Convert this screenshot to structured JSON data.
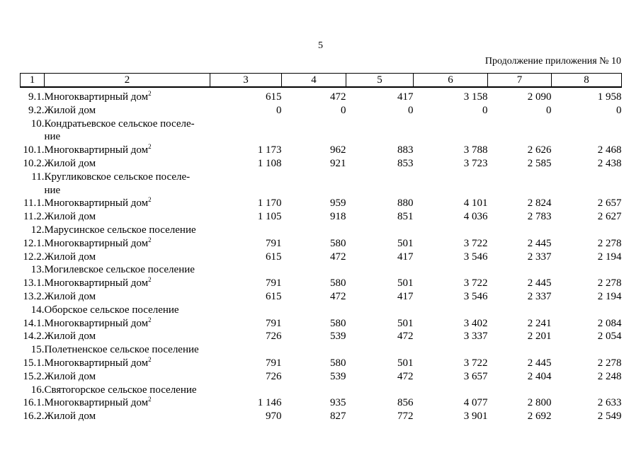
{
  "page": {
    "number": "5",
    "continuation": "Продолжение приложения № 10"
  },
  "table": {
    "column_headers": [
      "1",
      "2",
      "3",
      "4",
      "5",
      "6",
      "7",
      "8"
    ],
    "rows": [
      {
        "num": "9.1.",
        "label_lines": [
          "Многоквартирный дом"
        ],
        "sup": "2",
        "values": [
          "615",
          "472",
          "417",
          "3 158",
          "2 090",
          "1 958"
        ]
      },
      {
        "num": "9.2.",
        "label_lines": [
          "Жилой дом"
        ],
        "values": [
          "0",
          "0",
          "0",
          "0",
          "0",
          "0"
        ]
      },
      {
        "num": "10.",
        "label_lines": [
          "Кондратьевское сельское поселе-",
          "ние"
        ],
        "values": []
      },
      {
        "num": "10.1.",
        "label_lines": [
          "Многоквартирный дом"
        ],
        "sup": "2",
        "values": [
          "1 173",
          "962",
          "883",
          "3 788",
          "2 626",
          "2 468"
        ]
      },
      {
        "num": "10.2.",
        "label_lines": [
          "Жилой дом"
        ],
        "values": [
          "1 108",
          "921",
          "853",
          "3 723",
          "2 585",
          "2 438"
        ]
      },
      {
        "num": "11.",
        "label_lines": [
          "Кругликовское сельское поселе-",
          "ние"
        ],
        "values": []
      },
      {
        "num": "11.1.",
        "label_lines": [
          "Многоквартирный дом"
        ],
        "sup": "2",
        "values": [
          "1 170",
          "959",
          "880",
          "4 101",
          "2 824",
          "2 657"
        ]
      },
      {
        "num": "11.2.",
        "label_lines": [
          "Жилой дом"
        ],
        "values": [
          "1 105",
          "918",
          "851",
          "4 036",
          "2 783",
          "2 627"
        ]
      },
      {
        "num": "12.",
        "label_lines": [
          "Марусинское сельское поселение"
        ],
        "values": []
      },
      {
        "num": "12.1.",
        "label_lines": [
          "Многоквартирный дом"
        ],
        "sup": "2",
        "values": [
          "791",
          "580",
          "501",
          "3 722",
          "2 445",
          "2 278"
        ]
      },
      {
        "num": "12.2.",
        "label_lines": [
          "Жилой дом"
        ],
        "values": [
          "615",
          "472",
          "417",
          "3 546",
          "2 337",
          "2 194"
        ]
      },
      {
        "num": "13.",
        "label_lines": [
          "Могилевское сельское поселение"
        ],
        "values": []
      },
      {
        "num": "13.1.",
        "label_lines": [
          "Многоквартирный дом"
        ],
        "sup": "2",
        "values": [
          "791",
          "580",
          "501",
          "3 722",
          "2 445",
          "2 278"
        ]
      },
      {
        "num": "13.2.",
        "label_lines": [
          "Жилой дом"
        ],
        "values": [
          "615",
          "472",
          "417",
          "3 546",
          "2 337",
          "2 194"
        ]
      },
      {
        "num": "14.",
        "label_lines": [
          "Оборское сельское поселение"
        ],
        "values": []
      },
      {
        "num": "14.1.",
        "label_lines": [
          "Многоквартирный дом"
        ],
        "sup": "2",
        "values": [
          "791",
          "580",
          "501",
          "3 402",
          "2 241",
          "2 084"
        ]
      },
      {
        "num": "14.2.",
        "label_lines": [
          "Жилой дом"
        ],
        "values": [
          "726",
          "539",
          "472",
          "3 337",
          "2 201",
          "2 054"
        ]
      },
      {
        "num": "15.",
        "label_lines": [
          "Полетненское сельское поселение"
        ],
        "values": []
      },
      {
        "num": "15.1.",
        "label_lines": [
          "Многоквартирный дом"
        ],
        "sup": "2",
        "values": [
          "791",
          "580",
          "501",
          "3 722",
          "2 445",
          "2 278"
        ]
      },
      {
        "num": "15.2.",
        "label_lines": [
          "Жилой дом"
        ],
        "values": [
          "726",
          "539",
          "472",
          "3 657",
          "2 404",
          "2 248"
        ]
      },
      {
        "num": "16.",
        "label_lines": [
          "Святогорское сельское поселение"
        ],
        "values": []
      },
      {
        "num": "16.1.",
        "label_lines": [
          "Многоквартирный дом"
        ],
        "sup": "2",
        "values": [
          "1 146",
          "935",
          "856",
          "4 077",
          "2 800",
          "2 633"
        ]
      },
      {
        "num": "16.2.",
        "label_lines": [
          "Жилой дом"
        ],
        "values": [
          "970",
          "827",
          "772",
          "3 901",
          "2 692",
          "2 549"
        ]
      }
    ]
  }
}
